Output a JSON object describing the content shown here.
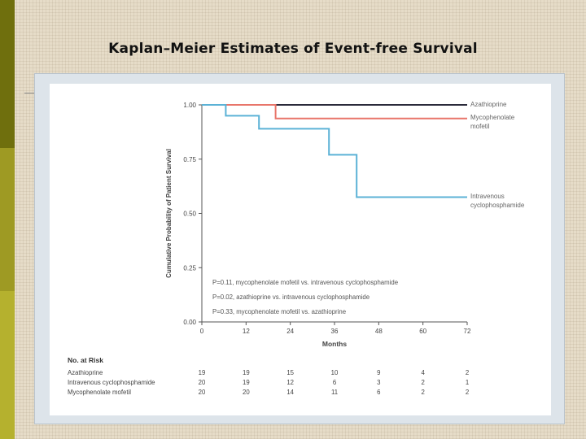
{
  "slide": {
    "title": "Kaplan–Meier Estimates of Event-free Survival",
    "colors": {
      "background": "#e6dcc8",
      "olive_dark": "#6f6f0d",
      "olive_light": "#b1ad2c"
    }
  },
  "chart_data": {
    "type": "line",
    "subtype": "kaplan-meier step",
    "ylabel": "Cumulative Probability of Patient Survival",
    "xlabel": "Months",
    "xlim": [
      0,
      72
    ],
    "ylim": [
      0.0,
      1.0
    ],
    "xticks": [
      "0",
      "12",
      "24",
      "36",
      "48",
      "60",
      "72"
    ],
    "yticks": [
      "0.00",
      "0.25",
      "0.50",
      "0.75",
      "1.00"
    ],
    "grid": false,
    "series": [
      {
        "name": "Azathioprine",
        "label_lines": [
          "Azathioprine"
        ],
        "color": "#2a2a3a",
        "x": [
          0,
          72
        ],
        "y": [
          1.0,
          1.0
        ]
      },
      {
        "name": "Mycophenolate mofetil",
        "label_lines": [
          "Mycophenolate",
          "mofetil"
        ],
        "color": "#e8756a",
        "x": [
          0,
          20,
          20,
          72
        ],
        "y": [
          1.0,
          1.0,
          0.937,
          0.937
        ]
      },
      {
        "name": "Intravenous cyclophosphamide",
        "label_lines": [
          "Intravenous",
          "cyclophosphamide"
        ],
        "color": "#5bb2d6",
        "x": [
          0,
          6.5,
          6.5,
          15.5,
          15.5,
          34.5,
          34.5,
          42,
          42,
          72
        ],
        "y": [
          1.0,
          1.0,
          0.95,
          0.95,
          0.89,
          0.89,
          0.77,
          0.77,
          0.575,
          0.575
        ]
      }
    ],
    "annotations": [
      "P=0.11, mycophenolate mofetil vs. intravenous cyclophosphamide",
      "P=0.02, azathioprine vs. intravenous cyclophosphamide",
      "P=0.33, mycophenolate mofetil vs. azathioprine"
    ],
    "risk_table": {
      "title": "No. at Risk",
      "rows": [
        {
          "label": "Azathioprine",
          "values": [
            "19",
            "19",
            "15",
            "10",
            "9",
            "4",
            "2"
          ]
        },
        {
          "label": "Intravenous cyclophosphamide",
          "values": [
            "20",
            "19",
            "12",
            "6",
            "3",
            "2",
            "1"
          ]
        },
        {
          "label": "Mycophenolate mofetil",
          "values": [
            "20",
            "20",
            "14",
            "11",
            "6",
            "2",
            "2"
          ]
        }
      ]
    }
  }
}
